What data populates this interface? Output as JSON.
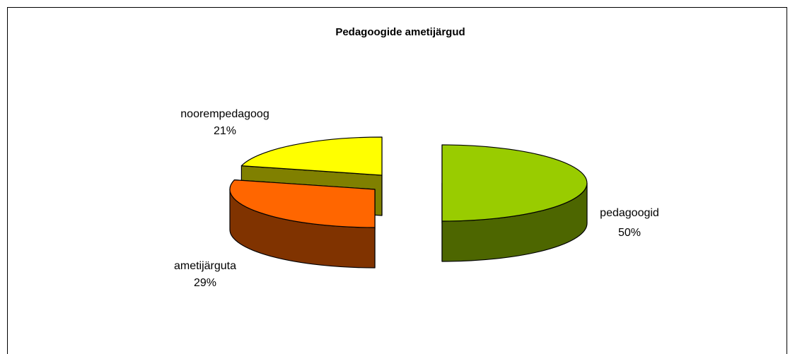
{
  "chart_data": {
    "type": "pie",
    "title": "Pedagoogide ametijärgud",
    "categories": [
      "pedagoogid",
      "ametijärguta",
      "noorempedagoog"
    ],
    "values": [
      50,
      29,
      21
    ],
    "value_labels": [
      "50%",
      "29%",
      "21%"
    ],
    "colors": [
      "#99cc00",
      "#ff6600",
      "#ffff00"
    ]
  }
}
